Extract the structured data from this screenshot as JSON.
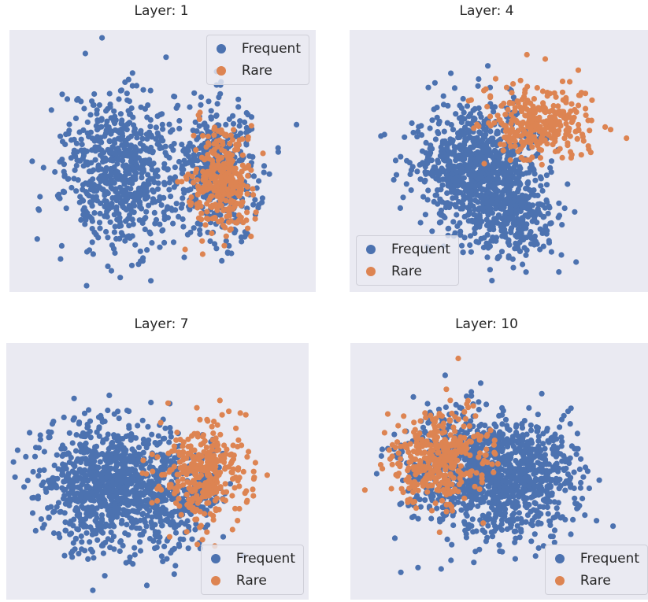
{
  "colors": {
    "frequent": "#4c72b0",
    "rare": "#dd8452",
    "plot_bg": "#eaeaf2"
  },
  "legend": {
    "frequent": "Frequent",
    "rare": "Rare"
  },
  "chart_data": [
    {
      "type": "scatter",
      "title": "Layer: 1",
      "legend_position": "upper-right",
      "grid": false,
      "series": [
        {
          "name": "Frequent",
          "color": "#4c72b0",
          "count": 1100,
          "clusters": [
            {
              "cx": 0.37,
              "cy": 0.55,
              "sx": 0.17,
              "sy": 0.28,
              "w": 0.6
            },
            {
              "cx": 0.68,
              "cy": 0.55,
              "sx": 0.13,
              "sy": 0.25,
              "w": 0.4
            }
          ]
        },
        {
          "name": "Rare",
          "color": "#dd8452",
          "count": 320,
          "clusters": [
            {
              "cx": 0.7,
              "cy": 0.58,
              "sx": 0.09,
              "sy": 0.18,
              "w": 1
            }
          ]
        }
      ]
    },
    {
      "type": "scatter",
      "title": "Layer: 4",
      "legend_position": "lower-left",
      "grid": false,
      "series": [
        {
          "name": "Frequent",
          "color": "#4c72b0",
          "count": 1100,
          "clusters": [
            {
              "cx": 0.42,
              "cy": 0.52,
              "sx": 0.18,
              "sy": 0.22,
              "w": 0.7
            },
            {
              "cx": 0.55,
              "cy": 0.7,
              "sx": 0.14,
              "sy": 0.16,
              "w": 0.3
            }
          ]
        },
        {
          "name": "Rare",
          "color": "#dd8452",
          "count": 300,
          "clusters": [
            {
              "cx": 0.63,
              "cy": 0.35,
              "sx": 0.16,
              "sy": 0.14,
              "w": 1
            }
          ]
        }
      ]
    },
    {
      "type": "scatter",
      "title": "Layer: 7",
      "legend_position": "lower-right",
      "grid": false,
      "series": [
        {
          "name": "Frequent",
          "color": "#4c72b0",
          "count": 1200,
          "clusters": [
            {
              "cx": 0.33,
              "cy": 0.55,
              "sx": 0.2,
              "sy": 0.22,
              "w": 0.75
            },
            {
              "cx": 0.55,
              "cy": 0.6,
              "sx": 0.15,
              "sy": 0.2,
              "w": 0.25
            }
          ]
        },
        {
          "name": "Rare",
          "color": "#dd8452",
          "count": 320,
          "clusters": [
            {
              "cx": 0.66,
              "cy": 0.52,
              "sx": 0.14,
              "sy": 0.18,
              "w": 1
            }
          ]
        }
      ]
    },
    {
      "type": "scatter",
      "title": "Layer: 10",
      "legend_position": "lower-right",
      "grid": false,
      "series": [
        {
          "name": "Frequent",
          "color": "#4c72b0",
          "count": 1200,
          "clusters": [
            {
              "cx": 0.55,
              "cy": 0.52,
              "sx": 0.19,
              "sy": 0.22,
              "w": 0.65
            },
            {
              "cx": 0.35,
              "cy": 0.48,
              "sx": 0.17,
              "sy": 0.22,
              "w": 0.35
            }
          ]
        },
        {
          "name": "Rare",
          "color": "#dd8452",
          "count": 380,
          "clusters": [
            {
              "cx": 0.3,
              "cy": 0.45,
              "sx": 0.15,
              "sy": 0.16,
              "w": 1
            }
          ]
        }
      ]
    }
  ]
}
